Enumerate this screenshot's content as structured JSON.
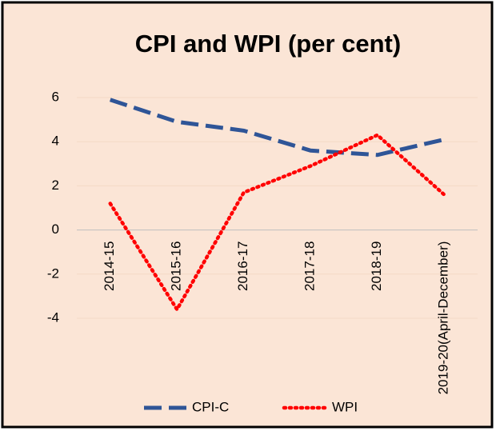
{
  "chart_data": {
    "type": "line",
    "title": "CPI and WPI (per cent)",
    "categories": [
      "2014-15",
      "2015-16",
      "2016-17",
      "2017-18",
      "2018-19",
      "2019-20(April-December)"
    ],
    "series": [
      {
        "name": "CPI-C",
        "color": "#2f5597",
        "values": [
          5.9,
          4.9,
          4.5,
          3.6,
          3.4,
          4.1
        ]
      },
      {
        "name": "WPI",
        "color": "#ff0000",
        "values": [
          1.2,
          -3.6,
          1.7,
          2.9,
          4.3,
          1.6
        ]
      }
    ],
    "ylim": [
      -4,
      6
    ],
    "yticks": [
      -4,
      -2,
      0,
      2,
      4,
      6
    ],
    "grid": true,
    "legend": "bottom"
  }
}
